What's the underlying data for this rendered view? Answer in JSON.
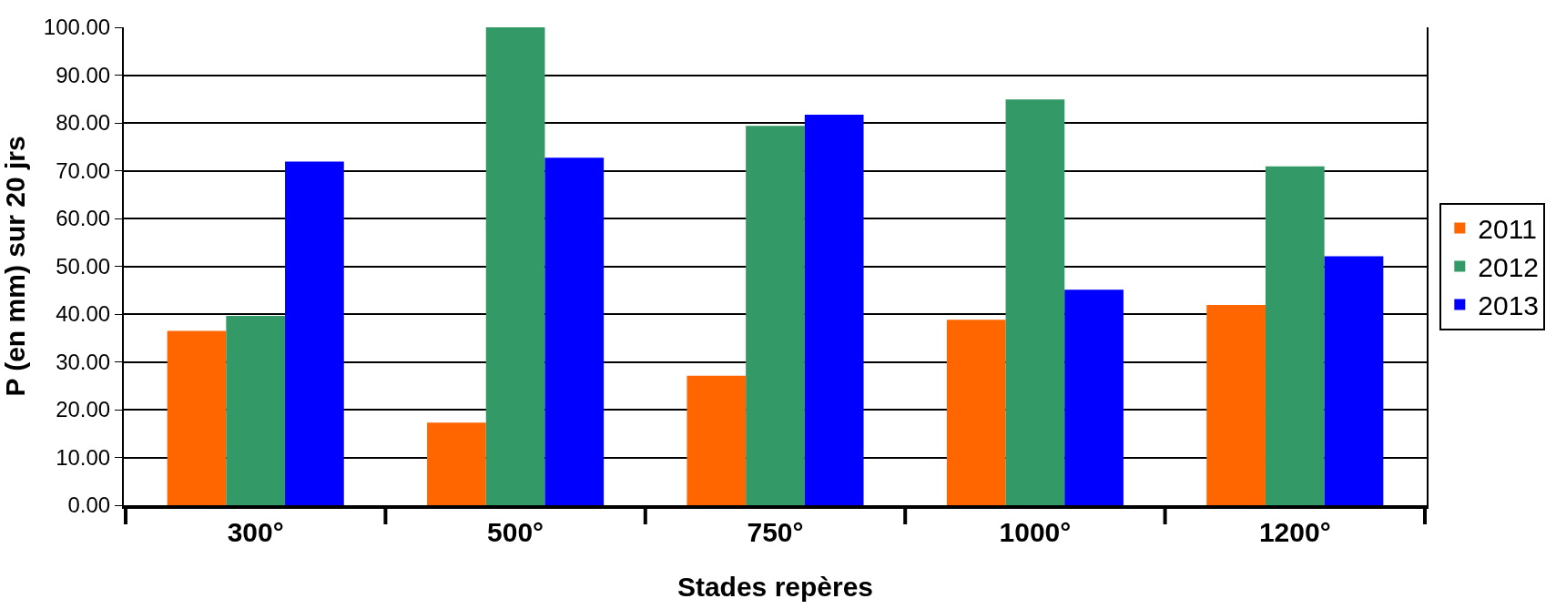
{
  "chart_data": {
    "type": "bar",
    "xlabel": "Stades repères",
    "ylabel": "P (en mm) sur 20 jrs",
    "categories": [
      "300°",
      "500°",
      "750°",
      "1000°",
      "1200°"
    ],
    "series": [
      {
        "name": "2011",
        "color": "#ff6600",
        "values": [
          36.5,
          17.3,
          27.1,
          38.8,
          41.9
        ]
      },
      {
        "name": "2012",
        "color": "#339966",
        "values": [
          39.6,
          100.0,
          79.4,
          84.9,
          70.9
        ]
      },
      {
        "name": "2013",
        "color": "#0000ff",
        "values": [
          71.9,
          72.7,
          81.7,
          45.1,
          52.1
        ]
      }
    ],
    "ylim": [
      0,
      100
    ],
    "yticks": [
      {
        "value": 0,
        "label": "0.00"
      },
      {
        "value": 10,
        "label": "10.00"
      },
      {
        "value": 20,
        "label": "20.00"
      },
      {
        "value": 30,
        "label": "30.00"
      },
      {
        "value": 40,
        "label": "40.00"
      },
      {
        "value": 50,
        "label": "50.00"
      },
      {
        "value": 60,
        "label": "60.00"
      },
      {
        "value": 70,
        "label": "70.00"
      },
      {
        "value": 80,
        "label": "80.00"
      },
      {
        "value": 90,
        "label": "90.00"
      },
      {
        "value": 100,
        "label": "100.00"
      }
    ],
    "grid": "y",
    "legend": "right"
  }
}
